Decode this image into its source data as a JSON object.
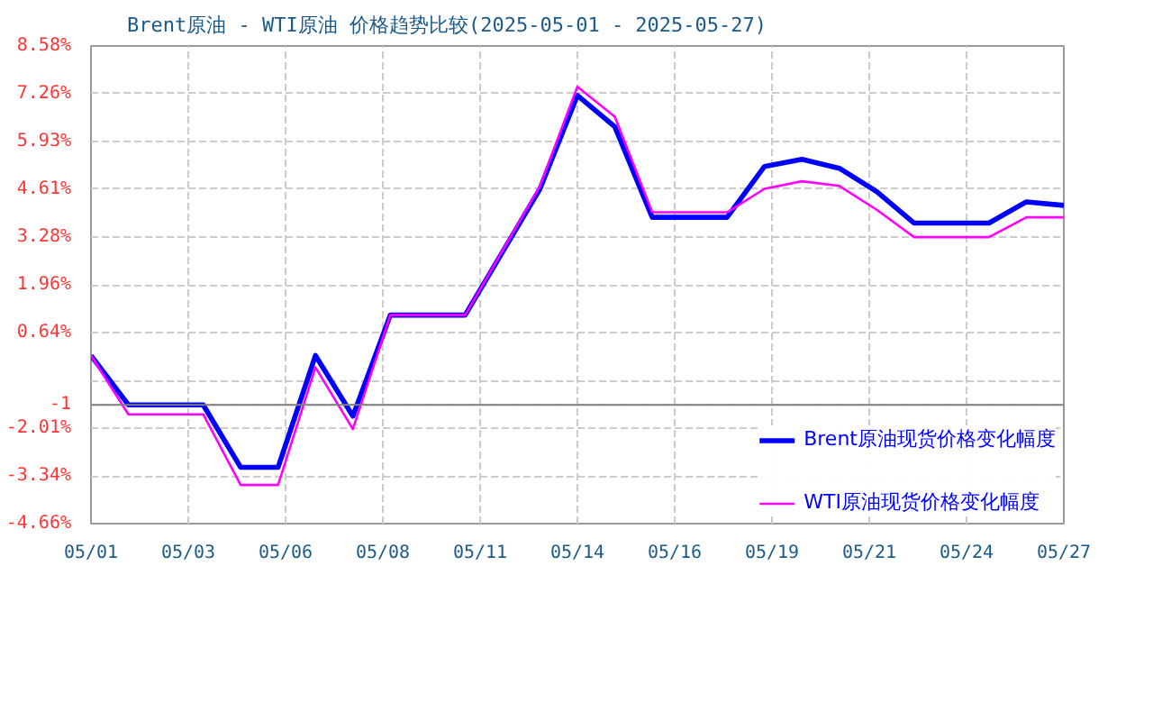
{
  "chart_data": {
    "type": "line",
    "title": "Brent原油 - WTI原油 价格趋势比较(2025-05-01 - 2025-05-27)",
    "series": [
      {
        "name": "Brent原油现货价格变化幅度",
        "color": "#0000ff",
        "x": [
          "2025-05-01",
          "2025-05-02",
          "2025-05-04",
          "2025-05-05",
          "2025-05-06",
          "2025-05-07",
          "2025-05-08",
          "2025-05-09",
          "2025-05-11",
          "2025-05-13",
          "2025-05-14",
          "2025-05-15",
          "2025-05-16",
          "2025-05-18",
          "2025-05-19",
          "2025-05-20",
          "2025-05-21",
          "2025-05-22",
          "2025-05-23",
          "2025-05-25",
          "2025-05-26",
          "2025-05-27"
        ],
        "values": [
          0.0,
          -1.37,
          -1.37,
          -3.1,
          -3.1,
          0.0,
          -1.68,
          1.12,
          1.12,
          4.62,
          7.21,
          6.34,
          3.83,
          3.83,
          5.24,
          5.44,
          5.19,
          4.54,
          3.67,
          3.67,
          4.26,
          4.16
        ]
      },
      {
        "name": "WTI原油现货价格变化幅度",
        "color": "#ff00ff",
        "x": [
          "2025-05-01",
          "2025-05-02",
          "2025-05-04",
          "2025-05-05",
          "2025-05-06",
          "2025-05-07",
          "2025-05-08",
          "2025-05-09",
          "2025-05-11",
          "2025-05-13",
          "2025-05-14",
          "2025-05-15",
          "2025-05-16",
          "2025-05-18",
          "2025-05-19",
          "2025-05-20",
          "2025-05-21",
          "2025-05-22",
          "2025-05-23",
          "2025-05-25",
          "2025-05-26",
          "2025-05-27"
        ],
        "values": [
          0.0,
          -1.63,
          -1.63,
          -3.59,
          -3.59,
          -0.33,
          -2.04,
          1.12,
          1.12,
          4.7,
          7.45,
          6.62,
          3.97,
          3.97,
          4.62,
          4.83,
          4.7,
          4.04,
          3.28,
          3.28,
          3.83,
          3.83
        ]
      }
    ],
    "xlim": [
      "2025-05-01",
      "2025-05-27"
    ],
    "xticks": [
      {
        "value": "2025-05-01T00:00",
        "label": "05/01"
      },
      {
        "value": "2025-05-03T14:24",
        "label": "05/03"
      },
      {
        "value": "2025-05-06T04:48",
        "label": "05/06"
      },
      {
        "value": "2025-05-08T19:12",
        "label": "05/08"
      },
      {
        "value": "2025-05-11T09:36",
        "label": "05/11"
      },
      {
        "value": "2025-05-14T00:00",
        "label": "05/14"
      },
      {
        "value": "2025-05-16T14:24",
        "label": "05/16"
      },
      {
        "value": "2025-05-19T04:48",
        "label": "05/19"
      },
      {
        "value": "2025-05-21T19:12",
        "label": "05/21"
      },
      {
        "value": "2025-05-24T09:36",
        "label": "05/24"
      },
      {
        "value": "2025-05-27T00:00",
        "label": "05/27"
      }
    ],
    "ylim": [
      -4.66,
      8.58
    ],
    "yticks": [
      {
        "value": 8.58,
        "label": "8.58%"
      },
      {
        "value": 7.26,
        "label": "7.26%"
      },
      {
        "value": 5.93,
        "label": "5.93%"
      },
      {
        "value": 4.61,
        "label": "4.61%"
      },
      {
        "value": 3.28,
        "label": "3.28%"
      },
      {
        "value": 1.96,
        "label": "1.96%"
      },
      {
        "value": 0.64,
        "label": "0.64%"
      },
      {
        "value": -0.69,
        "label": null
      },
      {
        "value": -1.37,
        "label": "-1"
      },
      {
        "value": -2.01,
        "label": "-2.01%"
      },
      {
        "value": -3.34,
        "label": "-3.34%"
      },
      {
        "value": -4.66,
        "label": "-4.66%"
      }
    ],
    "ref_lines": [
      {
        "axis": "y",
        "value": -1.37,
        "color": "#808080"
      }
    ],
    "grid": true,
    "legend": "bottom right",
    "line_style": "solid"
  }
}
